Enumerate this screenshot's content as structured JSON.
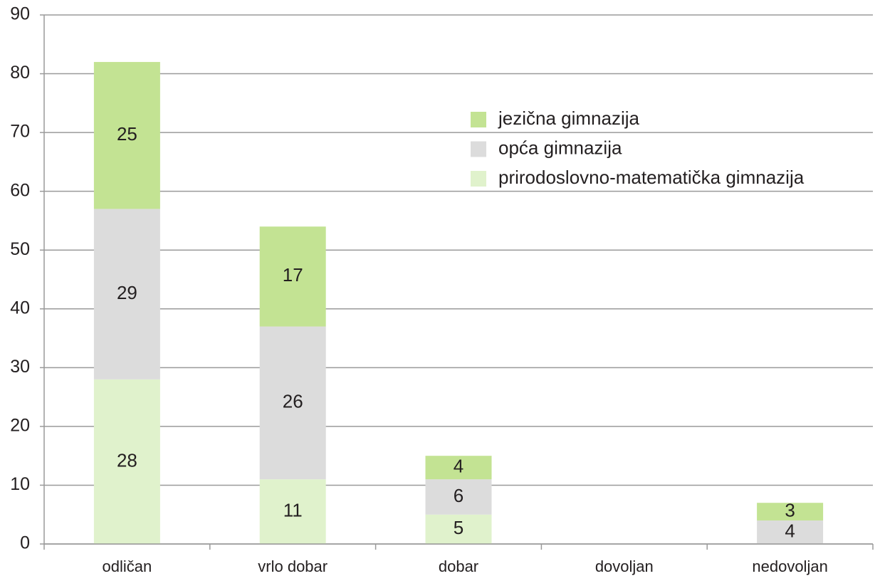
{
  "chart_data": {
    "type": "stacked_bar",
    "categories": [
      "odličan",
      "vrlo dobar",
      "dobar",
      "dovoljan",
      "nedovoljan"
    ],
    "series": [
      {
        "name": "jezična gimnazija",
        "color": "#c3e393",
        "values": [
          25,
          17,
          4,
          null,
          3
        ]
      },
      {
        "name": "opća gimnazija",
        "color": "#dcdcdc",
        "values": [
          29,
          26,
          6,
          null,
          4
        ]
      },
      {
        "name": "prirodoslovno-matematička gimnazija",
        "color": "#e0f2cc",
        "values": [
          28,
          11,
          5,
          null,
          null
        ]
      }
    ],
    "ylim": [
      0,
      90
    ],
    "yticks": [
      0,
      10,
      20,
      30,
      40,
      50,
      60,
      70,
      80,
      90
    ],
    "grid": true
  }
}
